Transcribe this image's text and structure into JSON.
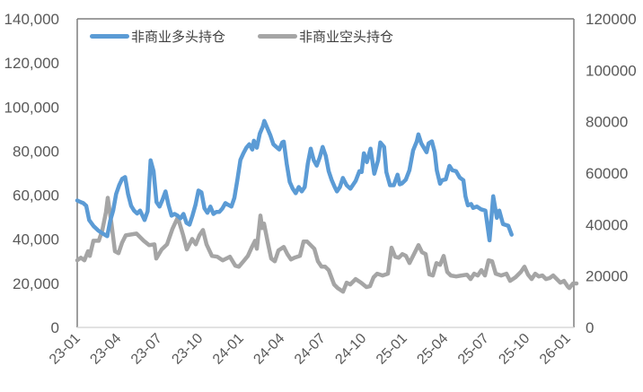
{
  "chart_data": {
    "type": "line",
    "title": "",
    "xlabel": "",
    "ylabel": "",
    "x_ticks": [
      "23-01",
      "23-04",
      "23-07",
      "23-10",
      "24-01",
      "24-04",
      "24-07",
      "24-10",
      "25-01",
      "25-04",
      "25-07",
      "25-10",
      "26-01"
    ],
    "left_axis": {
      "min": 0,
      "max": 140000,
      "step": 20000,
      "labels": [
        "0",
        "20,000",
        "40,000",
        "60,000",
        "80,000",
        "100,000",
        "120,000",
        "140,000"
      ]
    },
    "right_axis": {
      "min": 0,
      "max": 120000,
      "step": 20000,
      "labels": [
        "0",
        "20000",
        "40000",
        "60000",
        "80000",
        "100000",
        "120000"
      ]
    },
    "grid": false,
    "legend_position": "top-left inside",
    "x_range": [
      "23-01",
      "26-01"
    ],
    "series": [
      {
        "name": "非商业多头持仓",
        "axis": "left",
        "color": "#5B9BD5",
        "points": [
          [
            0,
            57600
          ],
          [
            0.088,
            56800
          ],
          [
            0.147,
            56400
          ],
          [
            0.22,
            55200
          ],
          [
            0.293,
            48700
          ],
          [
            0.403,
            45900
          ],
          [
            0.513,
            44000
          ],
          [
            0.623,
            42600
          ],
          [
            0.733,
            41400
          ],
          [
            0.806,
            48300
          ],
          [
            0.879,
            53000
          ],
          [
            0.952,
            60500
          ],
          [
            1.026,
            64500
          ],
          [
            1.099,
            67400
          ],
          [
            1.172,
            68200
          ],
          [
            1.245,
            60500
          ],
          [
            1.319,
            55200
          ],
          [
            1.392,
            53000
          ],
          [
            1.465,
            51700
          ],
          [
            1.538,
            53000
          ],
          [
            1.648,
            48700
          ],
          [
            1.722,
            52700
          ],
          [
            1.795,
            75800
          ],
          [
            1.868,
            70900
          ],
          [
            1.941,
            56800
          ],
          [
            2.015,
            54800
          ],
          [
            2.088,
            58000
          ],
          [
            2.161,
            61700
          ],
          [
            2.234,
            55600
          ],
          [
            2.308,
            50700
          ],
          [
            2.381,
            51500
          ],
          [
            2.454,
            50700
          ],
          [
            2.527,
            49500
          ],
          [
            2.601,
            51500
          ],
          [
            2.674,
            47400
          ],
          [
            2.747,
            46600
          ],
          [
            2.82,
            50700
          ],
          [
            2.894,
            55600
          ],
          [
            2.967,
            62100
          ],
          [
            3.04,
            61300
          ],
          [
            3.114,
            54000
          ],
          [
            3.187,
            52000
          ],
          [
            3.26,
            54800
          ],
          [
            3.333,
            51500
          ],
          [
            3.407,
            52400
          ],
          [
            3.48,
            52400
          ],
          [
            3.553,
            54000
          ],
          [
            3.626,
            56400
          ],
          [
            3.7,
            55600
          ],
          [
            3.773,
            54800
          ],
          [
            3.846,
            58800
          ],
          [
            3.919,
            66900
          ],
          [
            3.993,
            76000
          ],
          [
            4.066,
            79000
          ],
          [
            4.139,
            81500
          ],
          [
            4.212,
            83100
          ],
          [
            4.286,
            80700
          ],
          [
            4.322,
            84700
          ],
          [
            4.396,
            81500
          ],
          [
            4.469,
            87900
          ],
          [
            4.542,
            91200
          ],
          [
            4.579,
            93700
          ],
          [
            4.652,
            90400
          ],
          [
            4.725,
            87200
          ],
          [
            4.799,
            83100
          ],
          [
            4.872,
            81900
          ],
          [
            4.945,
            80700
          ],
          [
            5.018,
            83900
          ],
          [
            5.055,
            84300
          ],
          [
            5.128,
            74200
          ],
          [
            5.201,
            66000
          ],
          [
            5.275,
            62900
          ],
          [
            5.348,
            60900
          ],
          [
            5.421,
            63700
          ],
          [
            5.494,
            61700
          ],
          [
            5.568,
            63700
          ],
          [
            5.641,
            74200
          ],
          [
            5.714,
            81100
          ],
          [
            5.788,
            75800
          ],
          [
            5.861,
            73400
          ],
          [
            5.934,
            77100
          ],
          [
            6.007,
            81900
          ],
          [
            6.081,
            77900
          ],
          [
            6.154,
            70900
          ],
          [
            6.227,
            66900
          ],
          [
            6.301,
            63700
          ],
          [
            6.356,
            61700
          ],
          [
            6.429,
            63700
          ],
          [
            6.502,
            67800
          ],
          [
            6.593,
            64500
          ],
          [
            6.685,
            62900
          ],
          [
            6.813,
            66400
          ],
          [
            6.905,
            70900
          ],
          [
            6.96,
            70500
          ],
          [
            7.015,
            79000
          ],
          [
            7.088,
            75000
          ],
          [
            7.179,
            81100
          ],
          [
            7.271,
            69700
          ],
          [
            7.363,
            75800
          ],
          [
            7.418,
            83900
          ],
          [
            7.509,
            81900
          ],
          [
            7.564,
            70500
          ],
          [
            7.656,
            64500
          ],
          [
            7.747,
            64500
          ],
          [
            7.839,
            69300
          ],
          [
            7.893,
            64900
          ],
          [
            7.948,
            65300
          ],
          [
            8.04,
            67000
          ],
          [
            8.13,
            71300
          ],
          [
            8.22,
            80300
          ],
          [
            8.31,
            84400
          ],
          [
            8.35,
            87600
          ],
          [
            8.42,
            83500
          ],
          [
            8.55,
            79500
          ],
          [
            8.6,
            83500
          ],
          [
            8.68,
            84400
          ],
          [
            8.75,
            79500
          ],
          [
            8.8,
            71300
          ],
          [
            8.88,
            65200
          ],
          [
            8.93,
            66800
          ],
          [
            9.02,
            67200
          ],
          [
            9.11,
            73300
          ],
          [
            9.18,
            71300
          ],
          [
            9.27,
            70900
          ],
          [
            9.36,
            68000
          ],
          [
            9.45,
            66800
          ],
          [
            9.5,
            59500
          ],
          [
            9.56,
            55400
          ],
          [
            9.64,
            56000
          ],
          [
            9.69,
            54200
          ],
          [
            9.78,
            54800
          ],
          [
            9.88,
            53600
          ],
          [
            9.99,
            53000
          ],
          [
            10.09,
            39500
          ],
          [
            10.18,
            59500
          ],
          [
            10.27,
            49700
          ],
          [
            10.33,
            53000
          ],
          [
            10.42,
            46900
          ],
          [
            10.55,
            46100
          ],
          [
            10.63,
            42100
          ]
        ]
      },
      {
        "name": "非商业空头持仓",
        "axis": "right",
        "color": "#A5A5A5",
        "points": [
          [
            0,
            26100
          ],
          [
            0.088,
            27100
          ],
          [
            0.176,
            26100
          ],
          [
            0.264,
            29600
          ],
          [
            0.308,
            27800
          ],
          [
            0.396,
            33700
          ],
          [
            0.527,
            33700
          ],
          [
            0.615,
            37900
          ],
          [
            0.703,
            44900
          ],
          [
            0.747,
            50400
          ],
          [
            0.835,
            40700
          ],
          [
            0.923,
            29600
          ],
          [
            1.011,
            28900
          ],
          [
            1.099,
            33000
          ],
          [
            1.187,
            35800
          ],
          [
            1.451,
            36500
          ],
          [
            1.626,
            33700
          ],
          [
            1.758,
            32000
          ],
          [
            1.89,
            32300
          ],
          [
            1.934,
            26800
          ],
          [
            2.066,
            30300
          ],
          [
            2.198,
            32300
          ],
          [
            2.33,
            38300
          ],
          [
            2.462,
            42800
          ],
          [
            2.593,
            35800
          ],
          [
            2.681,
            30300
          ],
          [
            2.813,
            34400
          ],
          [
            2.901,
            32300
          ],
          [
            2.989,
            35800
          ],
          [
            3.077,
            37900
          ],
          [
            3.165,
            32300
          ],
          [
            3.297,
            27800
          ],
          [
            3.429,
            27500
          ],
          [
            3.56,
            26100
          ],
          [
            3.736,
            27500
          ],
          [
            3.868,
            24000
          ],
          [
            3.956,
            23600
          ],
          [
            4.088,
            26100
          ],
          [
            4.176,
            27800
          ],
          [
            4.264,
            30900
          ],
          [
            4.352,
            33700
          ],
          [
            4.396,
            30600
          ],
          [
            4.484,
            43500
          ],
          [
            4.527,
            38600
          ],
          [
            4.571,
            40400
          ],
          [
            4.659,
            33400
          ],
          [
            4.747,
            26800
          ],
          [
            4.835,
            25700
          ],
          [
            4.923,
            29900
          ],
          [
            5.055,
            31300
          ],
          [
            5.143,
            28500
          ],
          [
            5.231,
            26400
          ],
          [
            5.319,
            27100
          ],
          [
            5.451,
            27800
          ],
          [
            5.538,
            33400
          ],
          [
            5.626,
            33400
          ],
          [
            5.714,
            32000
          ],
          [
            5.802,
            30600
          ],
          [
            5.89,
            25700
          ],
          [
            5.978,
            23600
          ],
          [
            6.066,
            23600
          ],
          [
            6.154,
            22300
          ],
          [
            6.286,
            16700
          ],
          [
            6.374,
            15300
          ],
          [
            6.505,
            13900
          ],
          [
            6.593,
            17400
          ],
          [
            6.681,
            16700
          ],
          [
            6.813,
            18800
          ],
          [
            6.945,
            17400
          ],
          [
            7.077,
            15700
          ],
          [
            7.165,
            16000
          ],
          [
            7.253,
            19500
          ],
          [
            7.341,
            20900
          ],
          [
            7.473,
            20200
          ],
          [
            7.604,
            20900
          ],
          [
            7.692,
            31000
          ],
          [
            7.78,
            27500
          ],
          [
            7.868,
            27100
          ],
          [
            7.956,
            28500
          ],
          [
            8.044,
            27800
          ],
          [
            8.132,
            25000
          ],
          [
            8.264,
            29200
          ],
          [
            8.352,
            32000
          ],
          [
            8.44,
            29200
          ],
          [
            8.527,
            28500
          ],
          [
            8.615,
            20600
          ],
          [
            8.703,
            20200
          ],
          [
            8.791,
            25000
          ],
          [
            8.879,
            24300
          ],
          [
            8.967,
            27800
          ],
          [
            9.055,
            21600
          ],
          [
            9.143,
            20200
          ],
          [
            9.275,
            19800
          ],
          [
            9.407,
            20200
          ],
          [
            9.538,
            20500
          ],
          [
            9.626,
            18800
          ],
          [
            9.714,
            20900
          ],
          [
            9.802,
            20200
          ],
          [
            9.89,
            22300
          ],
          [
            9.978,
            20200
          ],
          [
            10.066,
            26100
          ],
          [
            10.154,
            25700
          ],
          [
            10.242,
            20900
          ],
          [
            10.374,
            20200
          ],
          [
            10.505,
            20900
          ],
          [
            10.593,
            18100
          ],
          [
            10.725,
            19500
          ],
          [
            10.857,
            21600
          ],
          [
            10.945,
            23600
          ],
          [
            11.033,
            20500
          ],
          [
            11.121,
            18800
          ],
          [
            11.209,
            20900
          ],
          [
            11.297,
            19800
          ],
          [
            11.385,
            20200
          ],
          [
            11.473,
            18800
          ],
          [
            11.56,
            19200
          ],
          [
            11.648,
            20200
          ],
          [
            11.736,
            18800
          ],
          [
            11.824,
            17400
          ],
          [
            11.912,
            18100
          ],
          [
            12.0,
            16000
          ],
          [
            12.044,
            15300
          ],
          [
            12.132,
            17100
          ],
          [
            12.22,
            17100
          ]
        ]
      }
    ]
  },
  "legend": {
    "items": [
      {
        "label": "非商业多头持仓",
        "color": "#5B9BD5"
      },
      {
        "label": "非商业空头持仓",
        "color": "#A5A5A5"
      }
    ]
  }
}
